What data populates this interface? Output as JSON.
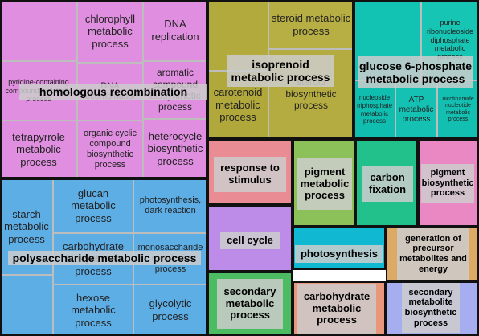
{
  "chart_data": {
    "type": "treemap",
    "groups": [
      {
        "label": "homologous recombination",
        "color": "#e08fe0",
        "tiles": [
          {
            "label": "homologous recombination"
          },
          {
            "label": "chlorophyll metabolic process"
          },
          {
            "label": "DNA replication"
          },
          {
            "label": "pyridine-containing compound metabolic process"
          },
          {
            "label": "DNA recombination"
          },
          {
            "label": "aromatic compound biosynthetic process"
          },
          {
            "label": "tetrapyrrole metabolic process"
          },
          {
            "label": "organic cyclic compound biosynthetic process"
          },
          {
            "label": "heterocycle biosynthetic process"
          }
        ]
      },
      {
        "label": "isoprenoid metabolic process",
        "color": "#b0a840",
        "tiles": [
          {
            "label": "isoprenoid metabolic process"
          },
          {
            "label": "steroid metabolic process"
          },
          {
            "label": "carotenoid metabolic process"
          },
          {
            "label": "steroid biosynthetic process"
          }
        ]
      },
      {
        "label": "glucose 6-phosphate metabolic process",
        "color": "#14c1b2",
        "tiles": [
          {
            "label": "glucose 6-phosphate metabolic process"
          },
          {
            "label": "purine ribonucleoside diphosphate metabolic process"
          },
          {
            "label": "nucleoside triphosphate metabolic process"
          },
          {
            "label": "ATP metabolic process"
          },
          {
            "label": "nicotinamide nucleotide metabolic process"
          }
        ]
      },
      {
        "label": "polysaccharide metabolic process",
        "color": "#5eaee6",
        "tiles": [
          {
            "label": "starch metabolic process"
          },
          {
            "label": "glucan metabolic process"
          },
          {
            "label": "photosynthesis, dark reaction"
          },
          {
            "label": "carbohydrate biosynthetic process"
          },
          {
            "label": "monosaccharide metabolic process"
          },
          {
            "label": "polysaccharide metabolic process"
          },
          {
            "label": "hexose metabolic process"
          },
          {
            "label": "glycolytic process"
          }
        ]
      },
      {
        "label": "response to stimulus",
        "color": "#ea8c94",
        "tiles": [
          {
            "label": "response to stimulus"
          }
        ]
      },
      {
        "label": "pigment metabolic process",
        "color": "#8cc15a",
        "tiles": [
          {
            "label": "pigment metabolic process"
          }
        ]
      },
      {
        "label": "carbon fixation",
        "color": "#22c08a",
        "tiles": [
          {
            "label": "carbon fixation"
          }
        ]
      },
      {
        "label": "pigment biosynthetic process",
        "color": "#ea88c4",
        "tiles": [
          {
            "label": "pigment biosynthetic process"
          }
        ]
      },
      {
        "label": "cell cycle",
        "color": "#bc8ce8",
        "tiles": [
          {
            "label": "cell cycle"
          }
        ]
      },
      {
        "label": "photosynthesis",
        "color": "#10b8d2",
        "tiles": [
          {
            "label": "photosynthesis"
          }
        ]
      },
      {
        "label": "generation of precursor metabolites and energy",
        "color": "#dcaa64",
        "tiles": [
          {
            "label": "generation of precursor metabolites and energy"
          }
        ]
      },
      {
        "label": "secondary metabolic process",
        "color": "#4cbc62",
        "tiles": [
          {
            "label": "secondary metabolic process"
          }
        ]
      },
      {
        "label": "carbohydrate metabolic process",
        "color": "#e8967c",
        "tiles": [
          {
            "label": "carbohydrate metabolic process"
          }
        ]
      },
      {
        "label": "secondary metabolite biosynthetic process",
        "color": "#a6aef0",
        "tiles": [
          {
            "label": "secondary metabolite biosynthetic process"
          }
        ]
      }
    ]
  }
}
